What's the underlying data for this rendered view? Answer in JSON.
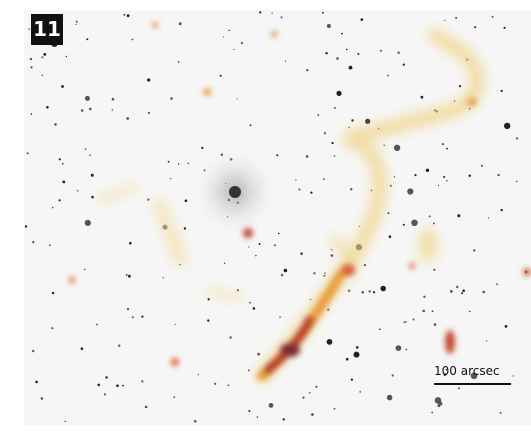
{
  "panel": {
    "label": "11"
  },
  "scale_bar": {
    "label": "100 arcsec"
  }
}
